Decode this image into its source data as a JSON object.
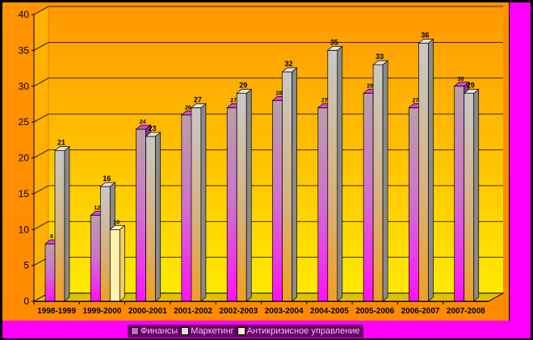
{
  "chart_data": {
    "type": "bar",
    "categories": [
      "1998-1999",
      "1999-2000",
      "2000-2001",
      "2001-2002",
      "2002-2003",
      "2003-2004",
      "2004-2005",
      "2005-2006",
      "2006-2007",
      "2007-2008"
    ],
    "series": [
      {
        "name": "Финансы",
        "values": [
          8,
          12,
          24,
          26,
          27,
          28,
          27,
          29,
          27,
          30
        ]
      },
      {
        "name": "Маркетинг",
        "values": [
          21,
          16,
          23,
          27,
          29,
          32,
          35,
          33,
          36,
          29
        ]
      },
      {
        "name": "Антикризисное управление",
        "values": [
          null,
          10,
          null,
          null,
          null,
          null,
          null,
          null,
          null,
          null
        ]
      }
    ],
    "ylim": [
      0,
      40
    ],
    "yticks": [
      0,
      5,
      10,
      15,
      20,
      25,
      30,
      35,
      40
    ],
    "grid": true,
    "legend_position": "bottom",
    "colors": {
      "background": "#ff8800",
      "plot_gradient_top": "#ff9a00",
      "plot_gradient_bottom": "#ffe600",
      "finance": "#ff00ff",
      "marketing": "#d8d0b8",
      "crisis": "#fff4c0",
      "border": "#ff00ff"
    }
  },
  "legend": {
    "items": [
      "Финансы",
      "Маркетинг",
      "Антикризисное управление"
    ]
  }
}
